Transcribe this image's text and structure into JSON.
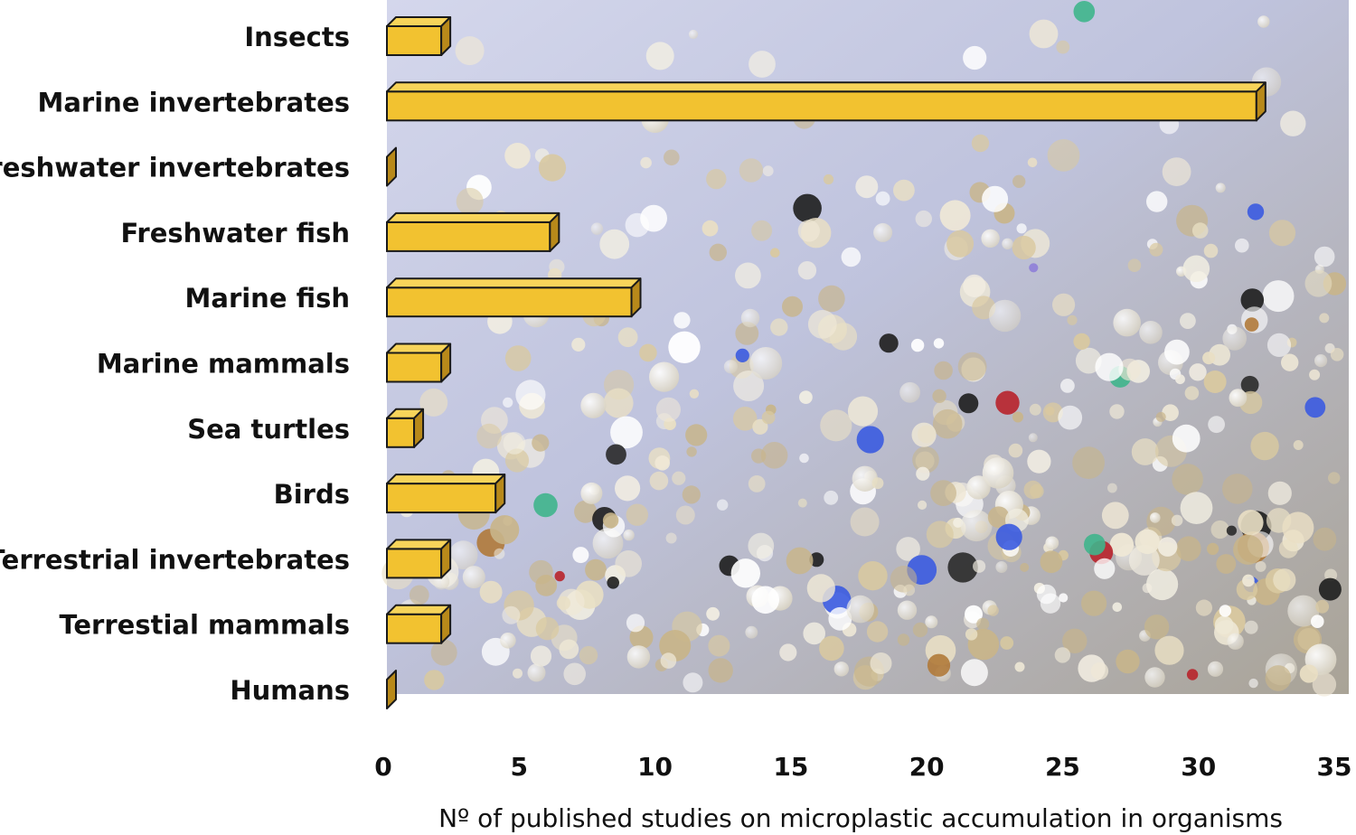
{
  "chart_data": {
    "type": "bar",
    "orientation": "horizontal",
    "categories": [
      "Insects",
      "Marine invertebrates",
      "Freshwater invertebrates",
      "Freshwater fish",
      "Marine fish",
      "Marine mammals",
      "Sea turtles",
      "Birds",
      "Terrestrial invertebrates",
      "Terrestial mammals",
      "Humans"
    ],
    "values": [
      2,
      32,
      0,
      6,
      9,
      2,
      1,
      4,
      2,
      2,
      0
    ],
    "xlabel": "Nº of published studies on microplastic accumulation in organisms",
    "ylabel": "",
    "xlim": [
      0,
      35
    ],
    "xticks": [
      "0",
      "5",
      "10",
      "15",
      "20",
      "25",
      "30",
      "35"
    ],
    "grid": false,
    "legend": "none",
    "colors": {
      "bar_front": "#F2C230",
      "bar_top": "#F7D45A",
      "bar_side": "#B8891A",
      "bar_outline": "#1A1A1A",
      "plot_background": "#C9CCE2",
      "text": "#111111"
    },
    "background": "photograph of microplastic particles"
  }
}
